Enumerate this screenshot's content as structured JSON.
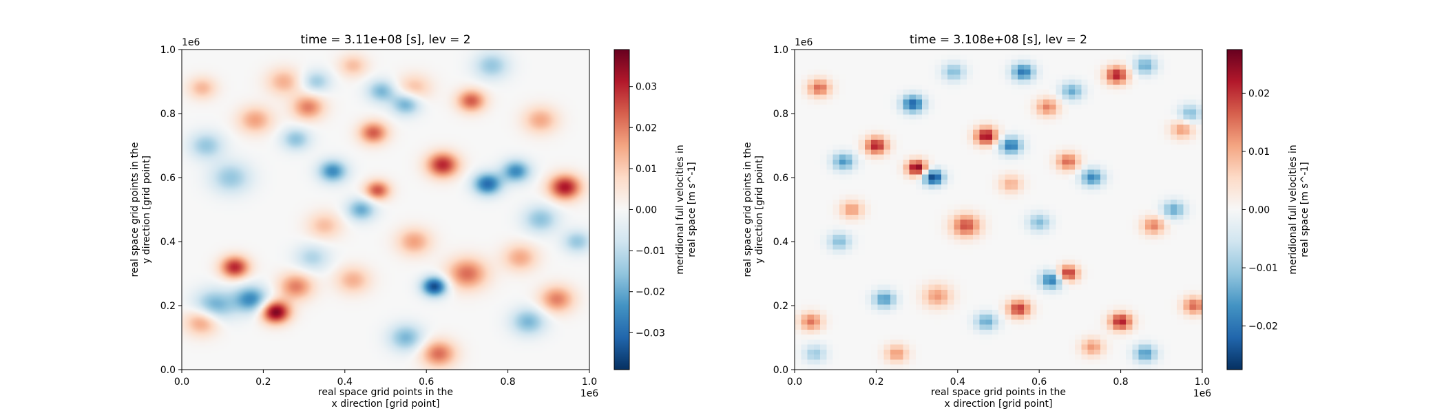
{
  "chart_data": [
    {
      "type": "heatmap",
      "title": "time = 3.11e+08 [s], lev = 2",
      "xlabel_line1": "real space grid points in the",
      "xlabel_line2": "x direction [grid point]",
      "ylabel_line1": "real space grid points in the",
      "ylabel_line2": "y direction [grid point]",
      "x_range": [
        0.0,
        1.0
      ],
      "y_range": [
        0.0,
        1.0
      ],
      "x_ticks": [
        "0.0",
        "0.2",
        "0.4",
        "0.6",
        "0.8",
        "1.0"
      ],
      "y_ticks": [
        "0.0",
        "0.2",
        "0.4",
        "0.6",
        "0.8",
        "1.0"
      ],
      "x_offset_label": "1e6",
      "y_offset_label": "1e6",
      "colorbar": {
        "label_line1": "meridional full velocities in",
        "label_line2": "real space [m s^-1]",
        "range": [
          -0.039,
          0.039
        ],
        "ticks": [
          "−0.03",
          "−0.02",
          "−0.01",
          "0.00",
          "0.01",
          "0.02",
          "0.03"
        ],
        "tick_values": [
          -0.03,
          -0.02,
          -0.01,
          0.0,
          0.01,
          0.02,
          0.03
        ],
        "colormap": "RdBu_r"
      },
      "field_style": "smooth",
      "features": [
        {
          "x": 0.18,
          "y": 0.78,
          "v": 0.016,
          "s": 0.03
        },
        {
          "x": 0.05,
          "y": 0.88,
          "v": 0.013,
          "s": 0.025
        },
        {
          "x": 0.25,
          "y": 0.9,
          "v": 0.014,
          "s": 0.03
        },
        {
          "x": 0.31,
          "y": 0.82,
          "v": 0.02,
          "s": 0.028
        },
        {
          "x": 0.42,
          "y": 0.95,
          "v": 0.012,
          "s": 0.025
        },
        {
          "x": 0.47,
          "y": 0.74,
          "v": 0.024,
          "s": 0.025
        },
        {
          "x": 0.64,
          "y": 0.64,
          "v": 0.03,
          "s": 0.028
        },
        {
          "x": 0.71,
          "y": 0.84,
          "v": 0.024,
          "s": 0.025
        },
        {
          "x": 0.94,
          "y": 0.57,
          "v": 0.032,
          "s": 0.028
        },
        {
          "x": 0.48,
          "y": 0.56,
          "v": 0.025,
          "s": 0.022
        },
        {
          "x": 0.13,
          "y": 0.32,
          "v": 0.03,
          "s": 0.025
        },
        {
          "x": 0.23,
          "y": 0.18,
          "v": 0.038,
          "s": 0.025
        },
        {
          "x": 0.28,
          "y": 0.26,
          "v": 0.02,
          "s": 0.03
        },
        {
          "x": 0.7,
          "y": 0.3,
          "v": 0.022,
          "s": 0.035
        },
        {
          "x": 0.92,
          "y": 0.22,
          "v": 0.02,
          "s": 0.03
        },
        {
          "x": 0.63,
          "y": 0.05,
          "v": 0.022,
          "s": 0.03
        },
        {
          "x": 0.05,
          "y": 0.15,
          "v": 0.018,
          "s": 0.03
        },
        {
          "x": 0.42,
          "y": 0.28,
          "v": 0.014,
          "s": 0.03
        },
        {
          "x": 0.57,
          "y": 0.4,
          "v": 0.016,
          "s": 0.03
        },
        {
          "x": 0.83,
          "y": 0.35,
          "v": 0.015,
          "s": 0.03
        },
        {
          "x": 0.35,
          "y": 0.45,
          "v": 0.012,
          "s": 0.03
        },
        {
          "x": 0.88,
          "y": 0.78,
          "v": 0.015,
          "s": 0.03
        },
        {
          "x": 0.57,
          "y": 0.88,
          "v": 0.012,
          "s": 0.03
        },
        {
          "x": 0.12,
          "y": 0.6,
          "v": -0.015,
          "s": 0.035
        },
        {
          "x": 0.08,
          "y": 0.2,
          "v": -0.02,
          "s": 0.035
        },
        {
          "x": 0.17,
          "y": 0.22,
          "v": -0.025,
          "s": 0.03
        },
        {
          "x": 0.37,
          "y": 0.62,
          "v": -0.025,
          "s": 0.025
        },
        {
          "x": 0.44,
          "y": 0.5,
          "v": -0.02,
          "s": 0.025
        },
        {
          "x": 0.49,
          "y": 0.87,
          "v": -0.018,
          "s": 0.025
        },
        {
          "x": 0.55,
          "y": 0.83,
          "v": -0.02,
          "s": 0.025
        },
        {
          "x": 0.62,
          "y": 0.26,
          "v": -0.036,
          "s": 0.022
        },
        {
          "x": 0.75,
          "y": 0.58,
          "v": -0.03,
          "s": 0.025
        },
        {
          "x": 0.82,
          "y": 0.62,
          "v": -0.025,
          "s": 0.025
        },
        {
          "x": 0.88,
          "y": 0.47,
          "v": -0.016,
          "s": 0.03
        },
        {
          "x": 0.76,
          "y": 0.95,
          "v": -0.015,
          "s": 0.03
        },
        {
          "x": 0.33,
          "y": 0.9,
          "v": -0.014,
          "s": 0.025
        },
        {
          "x": 0.06,
          "y": 0.7,
          "v": -0.015,
          "s": 0.03
        },
        {
          "x": 0.28,
          "y": 0.72,
          "v": -0.016,
          "s": 0.025
        },
        {
          "x": 0.55,
          "y": 0.1,
          "v": -0.018,
          "s": 0.03
        },
        {
          "x": 0.85,
          "y": 0.15,
          "v": -0.018,
          "s": 0.03
        },
        {
          "x": 0.97,
          "y": 0.4,
          "v": -0.015,
          "s": 0.025
        },
        {
          "x": 0.32,
          "y": 0.35,
          "v": -0.012,
          "s": 0.03
        }
      ]
    },
    {
      "type": "heatmap",
      "title": "time = 3.108e+08 [s], lev = 2",
      "xlabel_line1": "real space grid points in the",
      "xlabel_line2": "x direction [grid point]",
      "ylabel_line1": "real space grid points in the",
      "ylabel_line2": "y direction [grid point]",
      "x_range": [
        0.0,
        1.0
      ],
      "y_range": [
        0.0,
        1.0
      ],
      "x_ticks": [
        "0.0",
        "0.2",
        "0.4",
        "0.6",
        "0.8",
        "1.0"
      ],
      "y_ticks": [
        "0.0",
        "0.2",
        "0.4",
        "0.6",
        "0.8",
        "1.0"
      ],
      "x_offset_label": "1e6",
      "y_offset_label": "1e6",
      "colorbar": {
        "label_line1": "meridional full velocities in",
        "label_line2": "real space [m s^-1]",
        "range": [
          -0.0275,
          0.0275
        ],
        "ticks": [
          "−0.02",
          "−0.01",
          "0.00",
          "0.01",
          "0.02"
        ],
        "tick_values": [
          -0.02,
          -0.01,
          0.0,
          0.01,
          0.02
        ],
        "colormap": "RdBu_r"
      },
      "field_style": "pixelated",
      "features": [
        {
          "x": 0.3,
          "y": 0.63,
          "v": 0.026,
          "s": 0.018
        },
        {
          "x": 0.2,
          "y": 0.7,
          "v": 0.022,
          "s": 0.02
        },
        {
          "x": 0.47,
          "y": 0.73,
          "v": 0.024,
          "s": 0.02
        },
        {
          "x": 0.79,
          "y": 0.92,
          "v": 0.022,
          "s": 0.02
        },
        {
          "x": 0.8,
          "y": 0.15,
          "v": 0.022,
          "s": 0.02
        },
        {
          "x": 0.55,
          "y": 0.19,
          "v": 0.02,
          "s": 0.02
        },
        {
          "x": 0.67,
          "y": 0.3,
          "v": 0.022,
          "s": 0.018
        },
        {
          "x": 0.42,
          "y": 0.45,
          "v": 0.018,
          "s": 0.025
        },
        {
          "x": 0.06,
          "y": 0.88,
          "v": 0.016,
          "s": 0.02
        },
        {
          "x": 0.62,
          "y": 0.82,
          "v": 0.014,
          "s": 0.02
        },
        {
          "x": 0.67,
          "y": 0.65,
          "v": 0.016,
          "s": 0.02
        },
        {
          "x": 0.98,
          "y": 0.2,
          "v": 0.016,
          "s": 0.02
        },
        {
          "x": 0.04,
          "y": 0.15,
          "v": 0.015,
          "s": 0.02
        },
        {
          "x": 0.35,
          "y": 0.23,
          "v": 0.012,
          "s": 0.025
        },
        {
          "x": 0.14,
          "y": 0.5,
          "v": 0.012,
          "s": 0.02
        },
        {
          "x": 0.88,
          "y": 0.45,
          "v": 0.014,
          "s": 0.02
        },
        {
          "x": 0.73,
          "y": 0.07,
          "v": 0.012,
          "s": 0.02
        },
        {
          "x": 0.25,
          "y": 0.05,
          "v": 0.012,
          "s": 0.02
        },
        {
          "x": 0.53,
          "y": 0.58,
          "v": 0.01,
          "s": 0.02
        },
        {
          "x": 0.95,
          "y": 0.75,
          "v": 0.012,
          "s": 0.02
        },
        {
          "x": 0.34,
          "y": 0.6,
          "v": -0.026,
          "s": 0.018
        },
        {
          "x": 0.29,
          "y": 0.83,
          "v": -0.022,
          "s": 0.02
        },
        {
          "x": 0.53,
          "y": 0.7,
          "v": -0.02,
          "s": 0.02
        },
        {
          "x": 0.56,
          "y": 0.93,
          "v": -0.02,
          "s": 0.02
        },
        {
          "x": 0.63,
          "y": 0.28,
          "v": -0.02,
          "s": 0.02
        },
        {
          "x": 0.73,
          "y": 0.6,
          "v": -0.018,
          "s": 0.02
        },
        {
          "x": 0.12,
          "y": 0.65,
          "v": -0.016,
          "s": 0.02
        },
        {
          "x": 0.22,
          "y": 0.22,
          "v": -0.016,
          "s": 0.02
        },
        {
          "x": 0.86,
          "y": 0.05,
          "v": -0.016,
          "s": 0.02
        },
        {
          "x": 0.47,
          "y": 0.15,
          "v": -0.014,
          "s": 0.02
        },
        {
          "x": 0.93,
          "y": 0.5,
          "v": -0.014,
          "s": 0.02
        },
        {
          "x": 0.68,
          "y": 0.87,
          "v": -0.014,
          "s": 0.02
        },
        {
          "x": 0.86,
          "y": 0.95,
          "v": -0.014,
          "s": 0.02
        },
        {
          "x": 0.11,
          "y": 0.4,
          "v": -0.012,
          "s": 0.02
        },
        {
          "x": 0.6,
          "y": 0.46,
          "v": -0.012,
          "s": 0.02
        },
        {
          "x": 0.39,
          "y": 0.93,
          "v": -0.012,
          "s": 0.02
        },
        {
          "x": 0.97,
          "y": 0.8,
          "v": -0.012,
          "s": 0.02
        },
        {
          "x": 0.05,
          "y": 0.05,
          "v": -0.01,
          "s": 0.02
        }
      ]
    }
  ]
}
